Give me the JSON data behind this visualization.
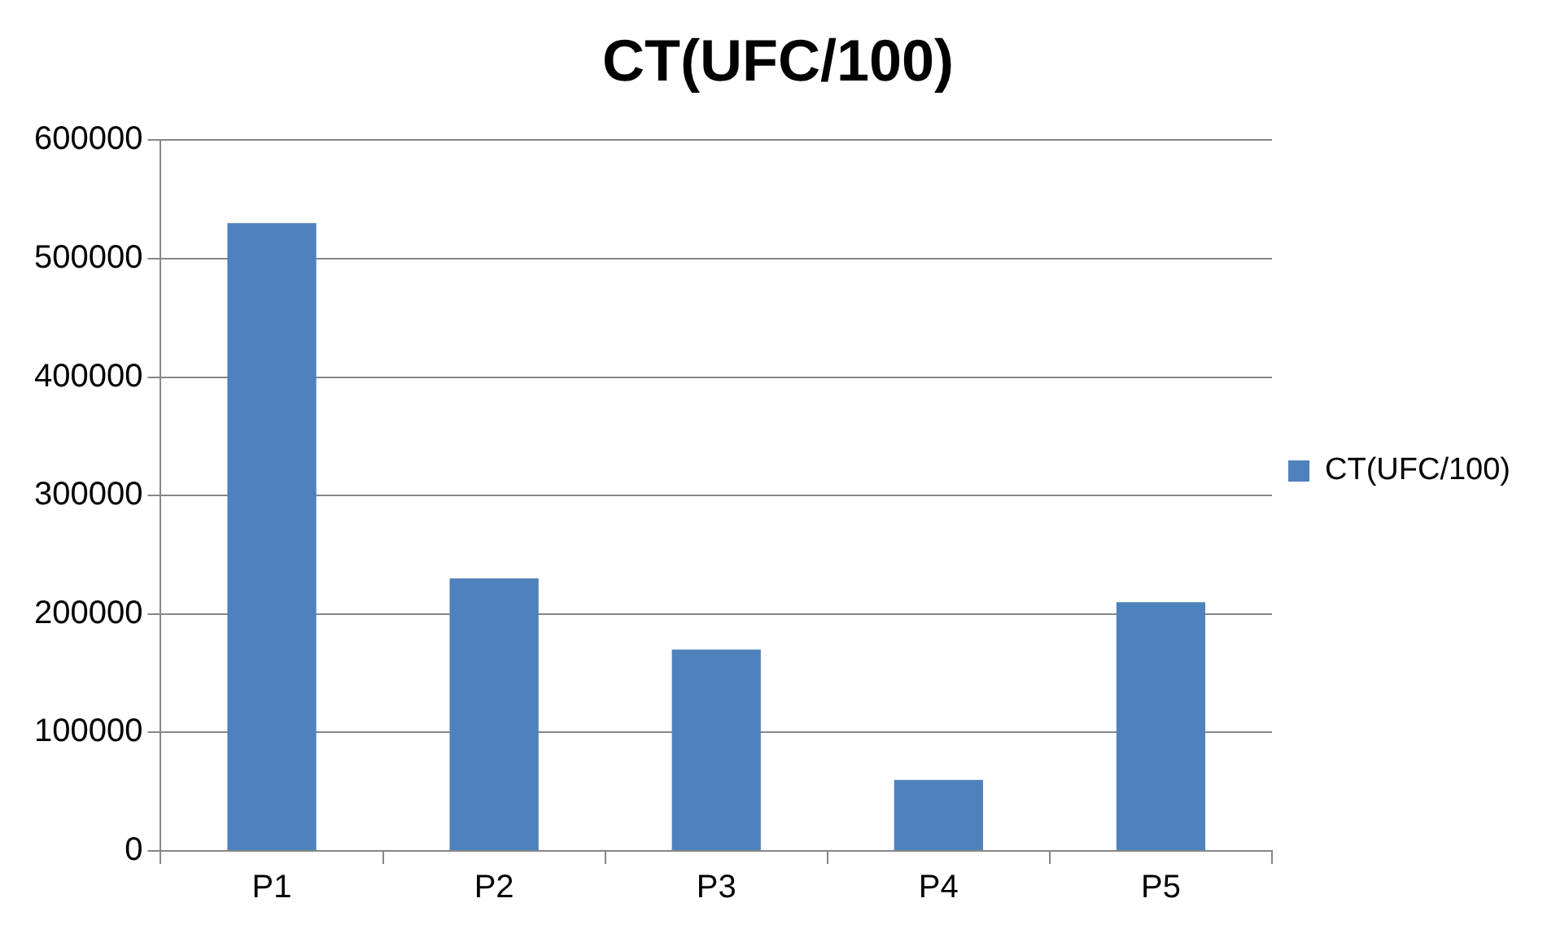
{
  "chart_data": {
    "type": "bar",
    "title": "CT(UFC/100)",
    "categories": [
      "P1",
      "P2",
      "P3",
      "P4",
      "P5"
    ],
    "series": [
      {
        "name": "CT(UFC/100)",
        "color": "#4f81bd",
        "values": [
          530000,
          230000,
          170000,
          60000,
          210000
        ]
      }
    ],
    "ylim": [
      0,
      600000
    ],
    "yticks": [
      0,
      100000,
      200000,
      300000,
      400000,
      500000,
      600000
    ],
    "grid": "y",
    "legend": "right"
  }
}
